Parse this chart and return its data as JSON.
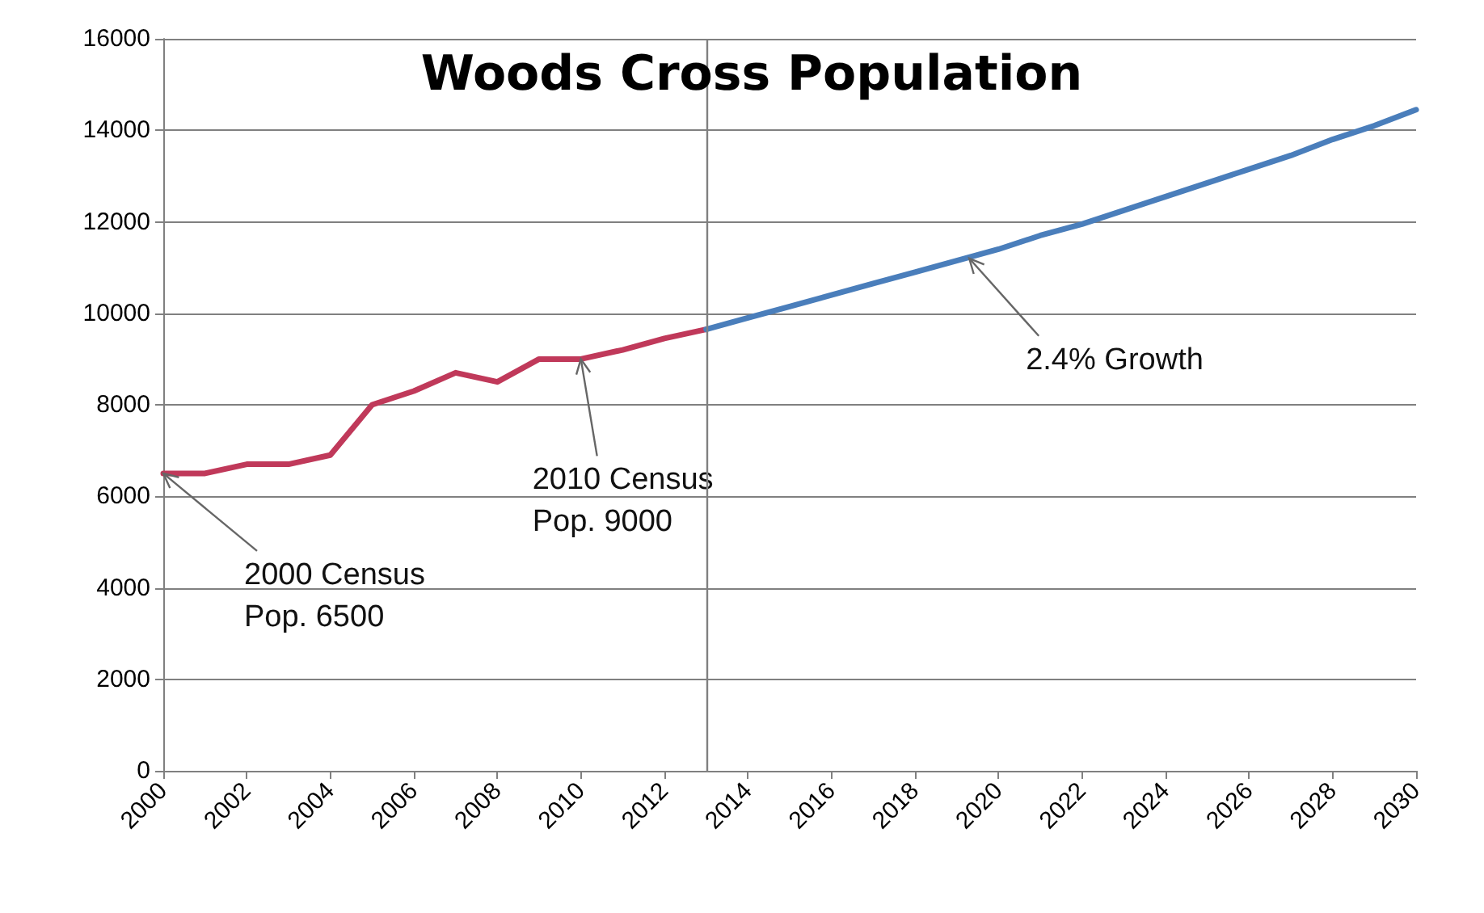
{
  "chart_data": {
    "type": "line",
    "title": "Woods Cross Population",
    "x": [
      2000,
      2001,
      2002,
      2003,
      2004,
      2005,
      2006,
      2007,
      2008,
      2009,
      2010,
      2011,
      2012,
      2013
    ],
    "series": [
      {
        "color": "#c0395a",
        "values": [
          6500,
          6500,
          6700,
          6700,
          6900,
          8000,
          8300,
          8700,
          8500,
          9000,
          9000,
          9200,
          9450,
          9650
        ]
      },
      {
        "color": "#4a7ebb",
        "x": [
          2013,
          2014,
          2015,
          2016,
          2017,
          2018,
          2019,
          2020,
          2021,
          2022,
          2023,
          2024,
          2025,
          2026,
          2027,
          2028,
          2029,
          2030
        ],
        "values": [
          9650,
          9900,
          10150,
          10400,
          10650,
          10900,
          11150,
          11400,
          11700,
          11950,
          12250,
          12550,
          12850,
          13150,
          13450,
          13800,
          14100,
          14450
        ]
      }
    ],
    "xlim": [
      2000,
      2030
    ],
    "xticks": [
      2000,
      2002,
      2004,
      2006,
      2008,
      2010,
      2012,
      2014,
      2016,
      2018,
      2020,
      2022,
      2024,
      2026,
      2028,
      2030
    ],
    "ylim": [
      0,
      16000
    ],
    "yticks": [
      0,
      2000,
      4000,
      6000,
      8000,
      10000,
      12000,
      14000,
      16000
    ],
    "grid": "y",
    "marker": "none",
    "line_style": "solid",
    "ref_lines": [
      {
        "axis": "x",
        "value": 2013,
        "color": "#808080"
      }
    ],
    "annotations": [
      {
        "text": "2000 Census\nPop. 6500",
        "x": 2000,
        "y": 6500
      },
      {
        "text": "2010 Census\nPop. 9000",
        "x": 2010,
        "y": 9000
      },
      {
        "text": "2.4% Growth",
        "x": 2019.3,
        "y": 11200
      }
    ]
  }
}
